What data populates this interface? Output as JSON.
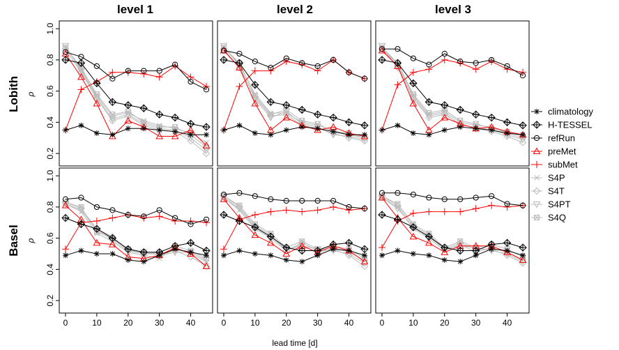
{
  "chart_data": {
    "type": "line",
    "panel_rows": [
      "Lobith",
      "Basel"
    ],
    "panel_cols": [
      "level 1",
      "level 2",
      "level 3"
    ],
    "xlabel": "lead time [d]",
    "ylabel": "ρ",
    "xlim": [
      -2,
      47
    ],
    "ylim": [
      0.12,
      1.05
    ],
    "x_ticks": [
      0,
      10,
      20,
      30,
      40
    ],
    "y_ticks": [
      0.2,
      0.4,
      0.6,
      0.8,
      1.0
    ],
    "y_tick_labels": [
      "0.2",
      "0.4",
      "0.6",
      "0.8",
      "1.0"
    ],
    "x": [
      0,
      5,
      10,
      15,
      20,
      25,
      30,
      35,
      40,
      45
    ],
    "legend_position": "right",
    "series_styles": [
      {
        "name": "climatology",
        "color": "#000000",
        "marker": "star"
      },
      {
        "name": "H-TESSEL",
        "color": "#000000",
        "marker": "diamond-plus"
      },
      {
        "name": "refRun",
        "color": "#000000",
        "marker": "circle"
      },
      {
        "name": "preMet",
        "color": "#ff0000",
        "marker": "triangle"
      },
      {
        "name": "subMet",
        "color": "#ff0000",
        "marker": "plus"
      },
      {
        "name": "S4P",
        "color": "#bbbbbb",
        "marker": "x"
      },
      {
        "name": "S4T",
        "color": "#bbbbbb",
        "marker": "diamond"
      },
      {
        "name": "S4PT",
        "color": "#bbbbbb",
        "marker": "triangle-down"
      },
      {
        "name": "S4Q",
        "color": "#bbbbbb",
        "marker": "square-x"
      }
    ],
    "panels": [
      {
        "row": "Lobith",
        "col": "level 1",
        "series": [
          {
            "name": "climatology",
            "values": [
              0.35,
              0.38,
              0.33,
              0.32,
              0.36,
              0.36,
              0.35,
              0.34,
              0.32,
              0.32
            ]
          },
          {
            "name": "H-TESSEL",
            "values": [
              0.8,
              0.78,
              0.65,
              0.53,
              0.51,
              0.49,
              0.45,
              0.43,
              0.39,
              0.37
            ]
          },
          {
            "name": "refRun",
            "values": [
              0.85,
              0.82,
              0.76,
              0.68,
              0.73,
              0.73,
              0.73,
              0.77,
              0.66,
              0.61
            ]
          },
          {
            "name": "preMet",
            "values": [
              0.84,
              0.69,
              0.52,
              0.31,
              0.41,
              0.37,
              0.31,
              0.31,
              0.35,
              0.25
            ]
          },
          {
            "name": "subMet",
            "values": [
              0.35,
              0.61,
              0.66,
              0.72,
              0.72,
              0.71,
              0.69,
              0.76,
              0.69,
              0.63
            ]
          },
          {
            "name": "S4P",
            "values": [
              0.88,
              0.74,
              0.57,
              0.44,
              0.46,
              0.41,
              0.38,
              0.36,
              0.33,
              0.27
            ]
          },
          {
            "name": "S4T",
            "values": [
              0.87,
              0.72,
              0.55,
              0.41,
              0.44,
              0.38,
              0.35,
              0.34,
              0.28,
              0.2
            ]
          },
          {
            "name": "S4PT",
            "values": [
              0.89,
              0.73,
              0.56,
              0.42,
              0.45,
              0.39,
              0.36,
              0.35,
              0.3,
              0.22
            ]
          },
          {
            "name": "S4Q",
            "values": [
              0.88,
              0.75,
              0.58,
              0.45,
              0.47,
              0.4,
              0.37,
              0.37,
              0.32,
              0.24
            ]
          }
        ]
      },
      {
        "row": "Lobith",
        "col": "level 2",
        "series": [
          {
            "name": "climatology",
            "values": [
              0.35,
              0.38,
              0.33,
              0.32,
              0.35,
              0.37,
              0.36,
              0.34,
              0.32,
              0.32
            ]
          },
          {
            "name": "H-TESSEL",
            "values": [
              0.8,
              0.78,
              0.64,
              0.53,
              0.51,
              0.48,
              0.45,
              0.43,
              0.4,
              0.38
            ]
          },
          {
            "name": "refRun",
            "values": [
              0.86,
              0.84,
              0.79,
              0.75,
              0.81,
              0.78,
              0.76,
              0.8,
              0.72,
              0.68
            ]
          },
          {
            "name": "preMet",
            "values": [
              0.86,
              0.75,
              0.52,
              0.35,
              0.43,
              0.38,
              0.35,
              0.37,
              0.33,
              0.31
            ]
          },
          {
            "name": "subMet",
            "values": [
              0.35,
              0.63,
              0.73,
              0.73,
              0.79,
              0.77,
              0.73,
              0.8,
              0.72,
              0.68
            ]
          },
          {
            "name": "S4P",
            "values": [
              0.88,
              0.77,
              0.58,
              0.46,
              0.46,
              0.4,
              0.38,
              0.35,
              0.32,
              0.3
            ]
          },
          {
            "name": "S4T",
            "values": [
              0.87,
              0.75,
              0.56,
              0.44,
              0.45,
              0.38,
              0.36,
              0.33,
              0.3,
              0.28
            ]
          },
          {
            "name": "S4PT",
            "values": [
              0.89,
              0.76,
              0.55,
              0.43,
              0.47,
              0.39,
              0.37,
              0.32,
              0.31,
              0.29
            ]
          },
          {
            "name": "S4Q",
            "values": [
              0.88,
              0.78,
              0.57,
              0.45,
              0.48,
              0.41,
              0.39,
              0.34,
              0.33,
              0.3
            ]
          }
        ]
      },
      {
        "row": "Lobith",
        "col": "level 3",
        "series": [
          {
            "name": "climatology",
            "values": [
              0.35,
              0.38,
              0.33,
              0.32,
              0.35,
              0.37,
              0.36,
              0.35,
              0.33,
              0.32
            ]
          },
          {
            "name": "H-TESSEL",
            "values": [
              0.8,
              0.78,
              0.65,
              0.53,
              0.51,
              0.48,
              0.45,
              0.43,
              0.4,
              0.38
            ]
          },
          {
            "name": "refRun",
            "values": [
              0.87,
              0.87,
              0.81,
              0.77,
              0.84,
              0.79,
              0.78,
              0.8,
              0.76,
              0.7
            ]
          },
          {
            "name": "preMet",
            "values": [
              0.86,
              0.76,
              0.52,
              0.35,
              0.43,
              0.39,
              0.36,
              0.37,
              0.34,
              0.32
            ]
          },
          {
            "name": "subMet",
            "values": [
              0.35,
              0.64,
              0.72,
              0.74,
              0.8,
              0.78,
              0.74,
              0.79,
              0.74,
              0.72
            ]
          },
          {
            "name": "S4P",
            "values": [
              0.88,
              0.77,
              0.57,
              0.45,
              0.47,
              0.4,
              0.38,
              0.37,
              0.33,
              0.3
            ]
          },
          {
            "name": "S4T",
            "values": [
              0.87,
              0.76,
              0.55,
              0.43,
              0.45,
              0.39,
              0.36,
              0.34,
              0.31,
              0.27
            ]
          },
          {
            "name": "S4PT",
            "values": [
              0.89,
              0.75,
              0.56,
              0.44,
              0.46,
              0.38,
              0.37,
              0.35,
              0.32,
              0.29
            ]
          },
          {
            "name": "S4Q",
            "values": [
              0.88,
              0.78,
              0.58,
              0.46,
              0.48,
              0.41,
              0.39,
              0.36,
              0.34,
              0.31
            ]
          }
        ]
      },
      {
        "row": "Basel",
        "col": "level 1",
        "series": [
          {
            "name": "climatology",
            "values": [
              0.49,
              0.52,
              0.5,
              0.5,
              0.46,
              0.45,
              0.49,
              0.53,
              0.51,
              0.49
            ]
          },
          {
            "name": "H-TESSEL",
            "values": [
              0.73,
              0.69,
              0.66,
              0.6,
              0.53,
              0.51,
              0.51,
              0.55,
              0.57,
              0.52
            ]
          },
          {
            "name": "refRun",
            "values": [
              0.85,
              0.86,
              0.8,
              0.78,
              0.75,
              0.74,
              0.78,
              0.73,
              0.69,
              0.72
            ]
          },
          {
            "name": "preMet",
            "values": [
              0.81,
              0.72,
              0.57,
              0.56,
              0.48,
              0.47,
              0.49,
              0.54,
              0.5,
              0.42
            ]
          },
          {
            "name": "subMet",
            "values": [
              0.53,
              0.7,
              0.71,
              0.73,
              0.75,
              0.73,
              0.74,
              0.71,
              0.71,
              0.7
            ]
          },
          {
            "name": "S4P",
            "values": [
              0.82,
              0.77,
              0.63,
              0.58,
              0.51,
              0.49,
              0.47,
              0.54,
              0.5,
              0.45
            ]
          },
          {
            "name": "S4T",
            "values": [
              0.83,
              0.79,
              0.66,
              0.61,
              0.52,
              0.5,
              0.5,
              0.52,
              0.48,
              0.42
            ]
          },
          {
            "name": "S4PT",
            "values": [
              0.82,
              0.78,
              0.65,
              0.59,
              0.52,
              0.51,
              0.49,
              0.51,
              0.51,
              0.46
            ]
          },
          {
            "name": "S4Q",
            "values": [
              0.83,
              0.8,
              0.64,
              0.6,
              0.53,
              0.5,
              0.51,
              0.55,
              0.52,
              0.47
            ]
          }
        ]
      },
      {
        "row": "Basel",
        "col": "level 2",
        "series": [
          {
            "name": "climatology",
            "values": [
              0.49,
              0.52,
              0.5,
              0.49,
              0.46,
              0.45,
              0.49,
              0.53,
              0.52,
              0.49
            ]
          },
          {
            "name": "H-TESSEL",
            "values": [
              0.75,
              0.71,
              0.67,
              0.61,
              0.54,
              0.52,
              0.52,
              0.56,
              0.57,
              0.53
            ]
          },
          {
            "name": "refRun",
            "values": [
              0.88,
              0.89,
              0.87,
              0.85,
              0.84,
              0.84,
              0.84,
              0.84,
              0.8,
              0.79
            ]
          },
          {
            "name": "preMet",
            "values": [
              0.85,
              0.73,
              0.62,
              0.57,
              0.5,
              0.55,
              0.51,
              0.55,
              0.52,
              0.45
            ]
          },
          {
            "name": "subMet",
            "values": [
              0.53,
              0.72,
              0.75,
              0.77,
              0.78,
              0.77,
              0.78,
              0.8,
              0.78,
              0.79
            ]
          },
          {
            "name": "S4P",
            "values": [
              0.86,
              0.78,
              0.66,
              0.6,
              0.52,
              0.56,
              0.5,
              0.54,
              0.51,
              0.46
            ]
          },
          {
            "name": "S4T",
            "values": [
              0.87,
              0.8,
              0.68,
              0.62,
              0.52,
              0.57,
              0.52,
              0.53,
              0.49,
              0.42
            ]
          },
          {
            "name": "S4PT",
            "values": [
              0.86,
              0.79,
              0.67,
              0.61,
              0.53,
              0.55,
              0.53,
              0.52,
              0.5,
              0.44
            ]
          },
          {
            "name": "S4Q",
            "values": [
              0.87,
              0.81,
              0.69,
              0.63,
              0.54,
              0.58,
              0.53,
              0.55,
              0.53,
              0.47
            ]
          }
        ]
      },
      {
        "row": "Basel",
        "col": "level 3",
        "series": [
          {
            "name": "climatology",
            "values": [
              0.49,
              0.52,
              0.5,
              0.49,
              0.46,
              0.45,
              0.49,
              0.53,
              0.52,
              0.49
            ]
          },
          {
            "name": "H-TESSEL",
            "values": [
              0.75,
              0.72,
              0.67,
              0.61,
              0.54,
              0.52,
              0.52,
              0.56,
              0.57,
              0.54
            ]
          },
          {
            "name": "refRun",
            "values": [
              0.89,
              0.89,
              0.88,
              0.86,
              0.85,
              0.85,
              0.86,
              0.87,
              0.82,
              0.81
            ]
          },
          {
            "name": "preMet",
            "values": [
              0.86,
              0.73,
              0.61,
              0.57,
              0.51,
              0.55,
              0.55,
              0.55,
              0.51,
              0.46
            ]
          },
          {
            "name": "subMet",
            "values": [
              0.54,
              0.71,
              0.76,
              0.77,
              0.77,
              0.77,
              0.79,
              0.81,
              0.8,
              0.81
            ]
          },
          {
            "name": "S4P",
            "values": [
              0.86,
              0.8,
              0.66,
              0.6,
              0.52,
              0.56,
              0.51,
              0.54,
              0.51,
              0.46
            ]
          },
          {
            "name": "S4T",
            "values": [
              0.87,
              0.81,
              0.68,
              0.62,
              0.53,
              0.57,
              0.53,
              0.53,
              0.49,
              0.44
            ]
          },
          {
            "name": "S4PT",
            "values": [
              0.86,
              0.79,
              0.67,
              0.61,
              0.53,
              0.55,
              0.54,
              0.52,
              0.5,
              0.45
            ]
          },
          {
            "name": "S4Q",
            "values": [
              0.87,
              0.82,
              0.69,
              0.63,
              0.54,
              0.58,
              0.54,
              0.56,
              0.53,
              0.48
            ]
          }
        ]
      }
    ]
  }
}
